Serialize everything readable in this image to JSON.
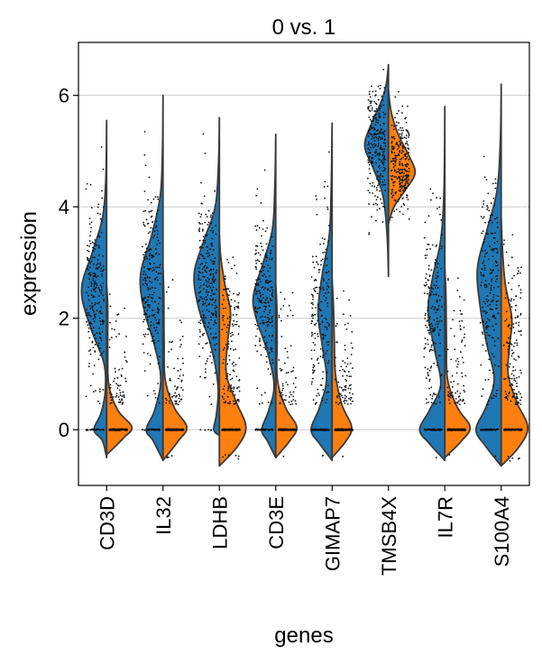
{
  "chart_data": {
    "type": "violin",
    "title": "0 vs. 1",
    "xlabel": "genes",
    "ylabel": "expression",
    "ylim": [
      -1.0,
      6.95
    ],
    "yticks": [
      0,
      2,
      4,
      6
    ],
    "grid": "horizontal",
    "categories": [
      "CD3D",
      "IL32",
      "LDHB",
      "CD3E",
      "GIMAP7",
      "TMSB4X",
      "IL7R",
      "S100A4"
    ],
    "series": [
      {
        "name": "0",
        "side": "left",
        "color": "#1f77b4"
      },
      {
        "name": "1",
        "side": "right",
        "color": "#ff7f0e"
      }
    ],
    "density_profiles": {
      "CD3D": {
        "0": [
          [
            -0.5,
            0
          ],
          [
            -0.2,
            0.15
          ],
          [
            0,
            0.45
          ],
          [
            0.3,
            0.2
          ],
          [
            0.7,
            0.05
          ],
          [
            1.2,
            0.1
          ],
          [
            1.8,
            0.55
          ],
          [
            2.5,
            0.9
          ],
          [
            3.2,
            0.5
          ],
          [
            3.8,
            0.15
          ],
          [
            4.5,
            0.03
          ],
          [
            5.55,
            0
          ]
        ],
        "1": [
          [
            -0.45,
            0
          ],
          [
            -0.15,
            0.6
          ],
          [
            0.05,
            0.9
          ],
          [
            0.35,
            0.4
          ],
          [
            0.8,
            0.08
          ],
          [
            1.5,
            0.04
          ],
          [
            2.2,
            0.04
          ],
          [
            2.6,
            0
          ]
        ]
      },
      "IL32": {
        "0": [
          [
            -0.55,
            0
          ],
          [
            -0.2,
            0.35
          ],
          [
            0,
            0.6
          ],
          [
            0.35,
            0.3
          ],
          [
            0.9,
            0.08
          ],
          [
            1.5,
            0.3
          ],
          [
            2.2,
            0.7
          ],
          [
            2.8,
            0.8
          ],
          [
            3.5,
            0.4
          ],
          [
            4.2,
            0.1
          ],
          [
            5,
            0.02
          ],
          [
            6,
            0
          ]
        ],
        "1": [
          [
            -0.55,
            0
          ],
          [
            -0.2,
            0.55
          ],
          [
            0.05,
            0.85
          ],
          [
            0.4,
            0.4
          ],
          [
            0.9,
            0.08
          ],
          [
            1.6,
            0.04
          ],
          [
            2.4,
            0.03
          ],
          [
            2.9,
            0
          ]
        ]
      },
      "LDHB": {
        "0": [
          [
            -0.1,
            0
          ],
          [
            0,
            0.2
          ],
          [
            0.3,
            0.1
          ],
          [
            0.8,
            0.05
          ],
          [
            1.5,
            0.3
          ],
          [
            2.2,
            0.75
          ],
          [
            2.8,
            0.9
          ],
          [
            3.4,
            0.55
          ],
          [
            4,
            0.15
          ],
          [
            4.8,
            0.03
          ],
          [
            5.6,
            0
          ]
        ],
        "1": [
          [
            -0.65,
            0
          ],
          [
            -0.3,
            0.65
          ],
          [
            0.05,
            0.95
          ],
          [
            0.5,
            0.6
          ],
          [
            1,
            0.25
          ],
          [
            1.6,
            0.3
          ],
          [
            2.1,
            0.4
          ],
          [
            2.6,
            0.2
          ],
          [
            3.1,
            0.05
          ],
          [
            3.5,
            0
          ]
        ]
      },
      "CD3E": {
        "0": [
          [
            -0.5,
            0
          ],
          [
            -0.2,
            0.3
          ],
          [
            0,
            0.5
          ],
          [
            0.35,
            0.25
          ],
          [
            0.8,
            0.06
          ],
          [
            1.4,
            0.3
          ],
          [
            2.0,
            0.7
          ],
          [
            2.4,
            0.8
          ],
          [
            3.0,
            0.45
          ],
          [
            3.6,
            0.12
          ],
          [
            4.4,
            0.03
          ],
          [
            5.3,
            0
          ]
        ],
        "1": [
          [
            -0.5,
            0
          ],
          [
            -0.2,
            0.5
          ],
          [
            0.05,
            0.75
          ],
          [
            0.4,
            0.35
          ],
          [
            0.9,
            0.06
          ],
          [
            1.6,
            0.05
          ],
          [
            2.2,
            0.04
          ],
          [
            2.6,
            0
          ]
        ]
      },
      "GIMAP7": {
        "0": [
          [
            -0.55,
            0
          ],
          [
            -0.25,
            0.45
          ],
          [
            0,
            0.75
          ],
          [
            0.4,
            0.45
          ],
          [
            0.9,
            0.2
          ],
          [
            1.5,
            0.35
          ],
          [
            2.1,
            0.5
          ],
          [
            2.8,
            0.35
          ],
          [
            3.5,
            0.1
          ],
          [
            4.4,
            0.03
          ],
          [
            5.5,
            0
          ]
        ],
        "1": [
          [
            -0.5,
            0
          ],
          [
            -0.2,
            0.5
          ],
          [
            0.05,
            0.7
          ],
          [
            0.45,
            0.35
          ],
          [
            1,
            0.12
          ],
          [
            1.6,
            0.08
          ],
          [
            2.2,
            0.05
          ],
          [
            2.7,
            0
          ]
        ]
      },
      "TMSB4X": {
        "0": [
          [
            2.75,
            0
          ],
          [
            3.5,
            0.05
          ],
          [
            4.2,
            0.2
          ],
          [
            4.7,
            0.55
          ],
          [
            5.1,
            0.85
          ],
          [
            5.5,
            0.6
          ],
          [
            5.9,
            0.25
          ],
          [
            6.2,
            0.08
          ],
          [
            6.55,
            0
          ]
        ],
        "1": [
          [
            3.7,
            0
          ],
          [
            4.0,
            0.2
          ],
          [
            4.3,
            0.6
          ],
          [
            4.6,
            0.95
          ],
          [
            4.9,
            0.75
          ],
          [
            5.3,
            0.35
          ],
          [
            5.7,
            0.1
          ],
          [
            6.1,
            0
          ]
        ]
      },
      "IL7R": {
        "0": [
          [
            -0.55,
            0
          ],
          [
            -0.25,
            0.55
          ],
          [
            0,
            0.9
          ],
          [
            0.35,
            0.55
          ],
          [
            0.8,
            0.15
          ],
          [
            1.4,
            0.35
          ],
          [
            2.1,
            0.6
          ],
          [
            2.7,
            0.45
          ],
          [
            3.4,
            0.15
          ],
          [
            4.3,
            0.03
          ],
          [
            5.8,
            0
          ]
        ],
        "1": [
          [
            -0.5,
            0
          ],
          [
            -0.2,
            0.6
          ],
          [
            0.05,
            0.9
          ],
          [
            0.4,
            0.45
          ],
          [
            0.9,
            0.1
          ],
          [
            1.6,
            0.06
          ],
          [
            2.4,
            0.04
          ],
          [
            2.9,
            0
          ]
        ]
      },
      "S100A4": {
        "0": [
          [
            -0.65,
            0
          ],
          [
            -0.3,
            0.55
          ],
          [
            0,
            0.9
          ],
          [
            0.4,
            0.55
          ],
          [
            0.9,
            0.25
          ],
          [
            1.5,
            0.5
          ],
          [
            2.2,
            0.75
          ],
          [
            2.9,
            0.85
          ],
          [
            3.6,
            0.5
          ],
          [
            4.3,
            0.15
          ],
          [
            5.2,
            0.03
          ],
          [
            6.2,
            0
          ]
        ],
        "1": [
          [
            -0.65,
            0
          ],
          [
            -0.3,
            0.65
          ],
          [
            0.05,
            0.95
          ],
          [
            0.5,
            0.55
          ],
          [
            1,
            0.25
          ],
          [
            1.5,
            0.3
          ],
          [
            2.0,
            0.38
          ],
          [
            2.6,
            0.15
          ],
          [
            3.2,
            0.05
          ],
          [
            3.8,
            0
          ]
        ]
      }
    }
  }
}
